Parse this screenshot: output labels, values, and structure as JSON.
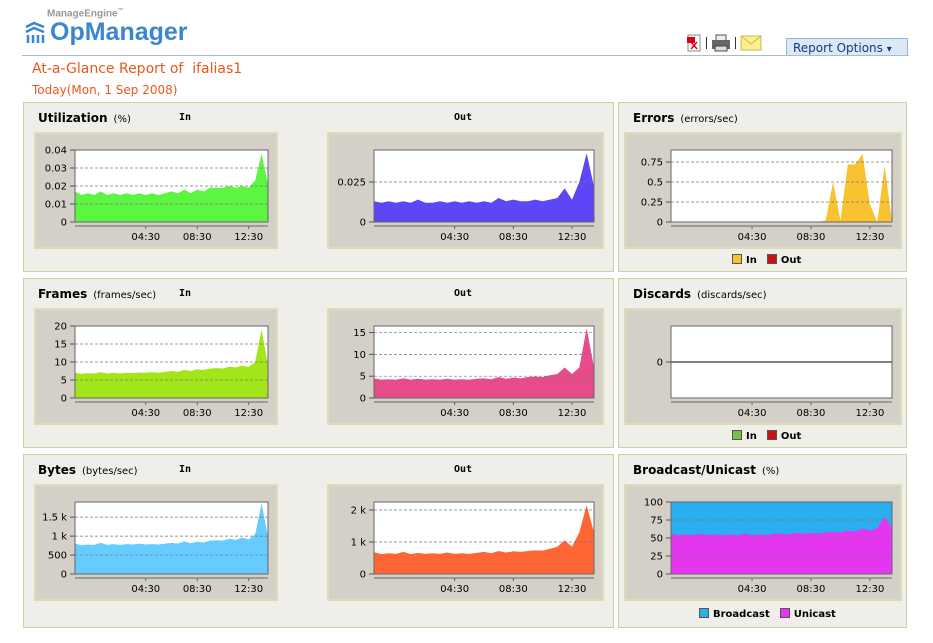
{
  "header": {
    "brand": "ManageEngine",
    "tm": "™",
    "product": "OpManager",
    "report_options": "Report Options",
    "report_options_caret": "▾",
    "icons": [
      "pdf-icon",
      "print-icon",
      "email-icon"
    ]
  },
  "report": {
    "title": "At-a-Glance Report of  ifalias1",
    "date": "Today(Mon, 1 Sep 2008)"
  },
  "panels": {
    "utilization": {
      "title": "Utilization",
      "unit": "(%)",
      "in": "In",
      "out": "Out"
    },
    "errors": {
      "title": "Errors",
      "unit": "(errors/sec)",
      "legend": [
        "In",
        "Out"
      ]
    },
    "frames": {
      "title": "Frames",
      "unit": "(frames/sec)",
      "in": "In",
      "out": "Out"
    },
    "discards": {
      "title": "Discards",
      "unit": "(discards/sec)",
      "legend": [
        "In",
        "Out"
      ]
    },
    "bytes": {
      "title": "Bytes",
      "unit": "(bytes/sec)",
      "in": "In",
      "out": "Out"
    },
    "bcast": {
      "title": "Broadcast/Unicast",
      "unit": "(%)",
      "legend": [
        "Broadcast",
        "Unicast"
      ]
    }
  },
  "colors": {
    "legend_in": "#f9c231",
    "legend_out": "#cc1111",
    "frames_legend_in": "#7ac143",
    "broadcast": "#29aef0",
    "unicast": "#e535f0"
  },
  "chart_data": [
    {
      "id": "util_in",
      "type": "area",
      "x_range": [
        -1,
        14
      ],
      "ylim": [
        0,
        0.04
      ],
      "yticks": [
        0,
        0.01,
        0.02,
        0.03,
        0.04
      ],
      "ytick_labels": [
        "0",
        "0.01",
        "0.02",
        "0.03",
        "0.04"
      ],
      "xticks": [
        4.5,
        8.5,
        12.5
      ],
      "xtick_labels": [
        "04:30",
        "08:30",
        "12:30"
      ],
      "color": "#5cf542",
      "values": [
        0.017,
        0.015,
        0.016,
        0.015,
        0.017,
        0.015,
        0.016,
        0.015,
        0.016,
        0.015,
        0.016,
        0.015,
        0.016,
        0.015,
        0.016,
        0.017,
        0.016,
        0.018,
        0.016,
        0.018,
        0.017,
        0.019,
        0.019,
        0.019,
        0.02,
        0.019,
        0.02,
        0.019,
        0.023,
        0.038,
        0.021
      ]
    },
    {
      "id": "util_out",
      "type": "area",
      "x_range": [
        -1,
        14
      ],
      "ylim": [
        0,
        0.045
      ],
      "yticks": [
        0,
        0.025
      ],
      "ytick_labels": [
        "0",
        "0.025"
      ],
      "xticks": [
        4.5,
        8.5,
        12.5
      ],
      "xtick_labels": [
        "04:30",
        "08:30",
        "12:30"
      ],
      "color": "#5c46f5",
      "values": [
        0.013,
        0.012,
        0.013,
        0.012,
        0.013,
        0.012,
        0.014,
        0.012,
        0.012,
        0.013,
        0.012,
        0.013,
        0.012,
        0.013,
        0.012,
        0.013,
        0.012,
        0.015,
        0.013,
        0.014,
        0.013,
        0.013,
        0.014,
        0.013,
        0.014,
        0.015,
        0.021,
        0.014,
        0.025,
        0.043,
        0.022
      ]
    },
    {
      "id": "errors",
      "type": "area",
      "x_range": [
        -1,
        14
      ],
      "ylim": [
        0,
        0.9
      ],
      "yticks": [
        0,
        0.25,
        0.5,
        0.75
      ],
      "ytick_labels": [
        "0",
        "0.25",
        "0.5",
        "0.75"
      ],
      "xticks": [
        4.5,
        8.5,
        12.5
      ],
      "xtick_labels": [
        "04:30",
        "08:30",
        "12:30"
      ],
      "color": "#f9c231",
      "values": [
        0,
        0,
        0,
        0,
        0,
        0,
        0,
        0,
        0,
        0,
        0,
        0,
        0,
        0,
        0,
        0,
        0,
        0,
        0,
        0,
        0,
        0.02,
        0.5,
        0.02,
        0.72,
        0.72,
        0.85,
        0.22,
        0,
        0.7,
        0
      ]
    },
    {
      "id": "frames_in",
      "type": "area",
      "x_range": [
        -1,
        14
      ],
      "ylim": [
        0,
        20
      ],
      "yticks": [
        0,
        5,
        10,
        15,
        20
      ],
      "ytick_labels": [
        "0",
        "5",
        "10",
        "15",
        "20"
      ],
      "xticks": [
        4.5,
        8.5,
        12.5
      ],
      "xtick_labels": [
        "04:30",
        "08:30",
        "12:30"
      ],
      "color": "#a2e61a",
      "values": [
        7,
        6.7,
        6.9,
        6.8,
        7.2,
        6.8,
        7,
        6.8,
        7,
        6.9,
        7.1,
        7,
        7.2,
        7,
        7.3,
        7.5,
        7.3,
        7.8,
        7.5,
        8,
        7.8,
        8.2,
        8.3,
        8.2,
        8.7,
        8.5,
        9,
        8.6,
        10,
        19,
        9
      ]
    },
    {
      "id": "frames_out",
      "type": "area",
      "x_range": [
        -1,
        14
      ],
      "ylim": [
        0,
        16.5
      ],
      "yticks": [
        0,
        5,
        10,
        15
      ],
      "ytick_labels": [
        "0",
        "5",
        "10",
        "15"
      ],
      "xticks": [
        4.5,
        8.5,
        12.5
      ],
      "xtick_labels": [
        "04:30",
        "08:30",
        "12:30"
      ],
      "color": "#e54c89",
      "values": [
        4.5,
        4.2,
        4.3,
        4.2,
        4.5,
        4.2,
        4.4,
        4.2,
        4.3,
        4.2,
        4.4,
        4.2,
        4.3,
        4.2,
        4.4,
        4.5,
        4.3,
        4.8,
        4.4,
        4.7,
        4.5,
        4.8,
        4.9,
        4.8,
        5.2,
        5.5,
        7,
        5.5,
        7,
        16,
        7
      ]
    },
    {
      "id": "discards",
      "type": "line",
      "x_range": [
        -1,
        14
      ],
      "ylim": [
        -1,
        1
      ],
      "yticks": [
        0
      ],
      "ytick_labels": [
        "0"
      ],
      "xticks": [
        4.5,
        8.5,
        12.5
      ],
      "xtick_labels": [
        "04:30",
        "08:30",
        "12:30"
      ],
      "color": "#000000",
      "values": [
        0,
        0,
        0,
        0,
        0,
        0,
        0,
        0,
        0,
        0,
        0,
        0,
        0,
        0,
        0,
        0,
        0,
        0,
        0,
        0,
        0,
        0,
        0,
        0,
        0,
        0,
        0,
        0,
        0,
        0,
        0
      ]
    },
    {
      "id": "bytes_in",
      "type": "area",
      "x_range": [
        -1,
        14
      ],
      "ylim": [
        0,
        1900
      ],
      "yticks": [
        0,
        500,
        1000,
        1500
      ],
      "ytick_labels": [
        "0",
        "500",
        "1 k",
        "1.5 k"
      ],
      "xticks": [
        4.5,
        8.5,
        12.5
      ],
      "xtick_labels": [
        "04:30",
        "08:30",
        "12:30"
      ],
      "color": "#66ccff",
      "values": [
        800,
        760,
        780,
        770,
        820,
        770,
        790,
        770,
        790,
        780,
        800,
        780,
        790,
        780,
        800,
        820,
        800,
        860,
        810,
        850,
        830,
        880,
        890,
        880,
        930,
        900,
        960,
        910,
        1050,
        1850,
        1000
      ]
    },
    {
      "id": "bytes_out",
      "type": "area",
      "x_range": [
        -1,
        14
      ],
      "ylim": [
        0,
        2250
      ],
      "yticks": [
        0,
        1000,
        2000
      ],
      "ytick_labels": [
        "0",
        "1 k",
        "2 k"
      ],
      "xticks": [
        4.5,
        8.5,
        12.5
      ],
      "xtick_labels": [
        "04:30",
        "08:30",
        "12:30"
      ],
      "color": "#ff6633",
      "values": [
        680,
        620,
        650,
        630,
        690,
        620,
        660,
        630,
        650,
        630,
        670,
        630,
        650,
        630,
        660,
        690,
        650,
        720,
        670,
        710,
        690,
        720,
        740,
        730,
        790,
        850,
        1050,
        850,
        1300,
        2150,
        1300
      ]
    },
    {
      "id": "bcast",
      "type": "stacked_area",
      "x_range": [
        -1,
        14
      ],
      "ylim": [
        0,
        100
      ],
      "yticks": [
        0,
        25,
        50,
        75,
        100
      ],
      "ytick_labels": [
        "0",
        "25",
        "50",
        "75",
        "100"
      ],
      "xticks": [
        4.5,
        8.5,
        12.5
      ],
      "xtick_labels": [
        "04:30",
        "08:30",
        "12:30"
      ],
      "series": [
        {
          "name": "Unicast",
          "color": "#e535f0",
          "values": [
            56,
            54,
            55,
            54,
            56,
            54,
            55,
            54,
            55,
            54,
            56,
            54,
            55,
            54,
            56,
            56,
            55,
            57,
            56,
            57,
            56,
            58,
            58,
            58,
            60,
            59,
            63,
            60,
            64,
            80,
            63
          ]
        },
        {
          "name": "Broadcast",
          "color": "#29aef0",
          "values": [
            44,
            46,
            45,
            46,
            44,
            46,
            45,
            46,
            45,
            46,
            44,
            46,
            45,
            46,
            44,
            44,
            45,
            43,
            44,
            43,
            44,
            42,
            42,
            42,
            40,
            41,
            37,
            40,
            36,
            20,
            37
          ]
        }
      ]
    }
  ]
}
